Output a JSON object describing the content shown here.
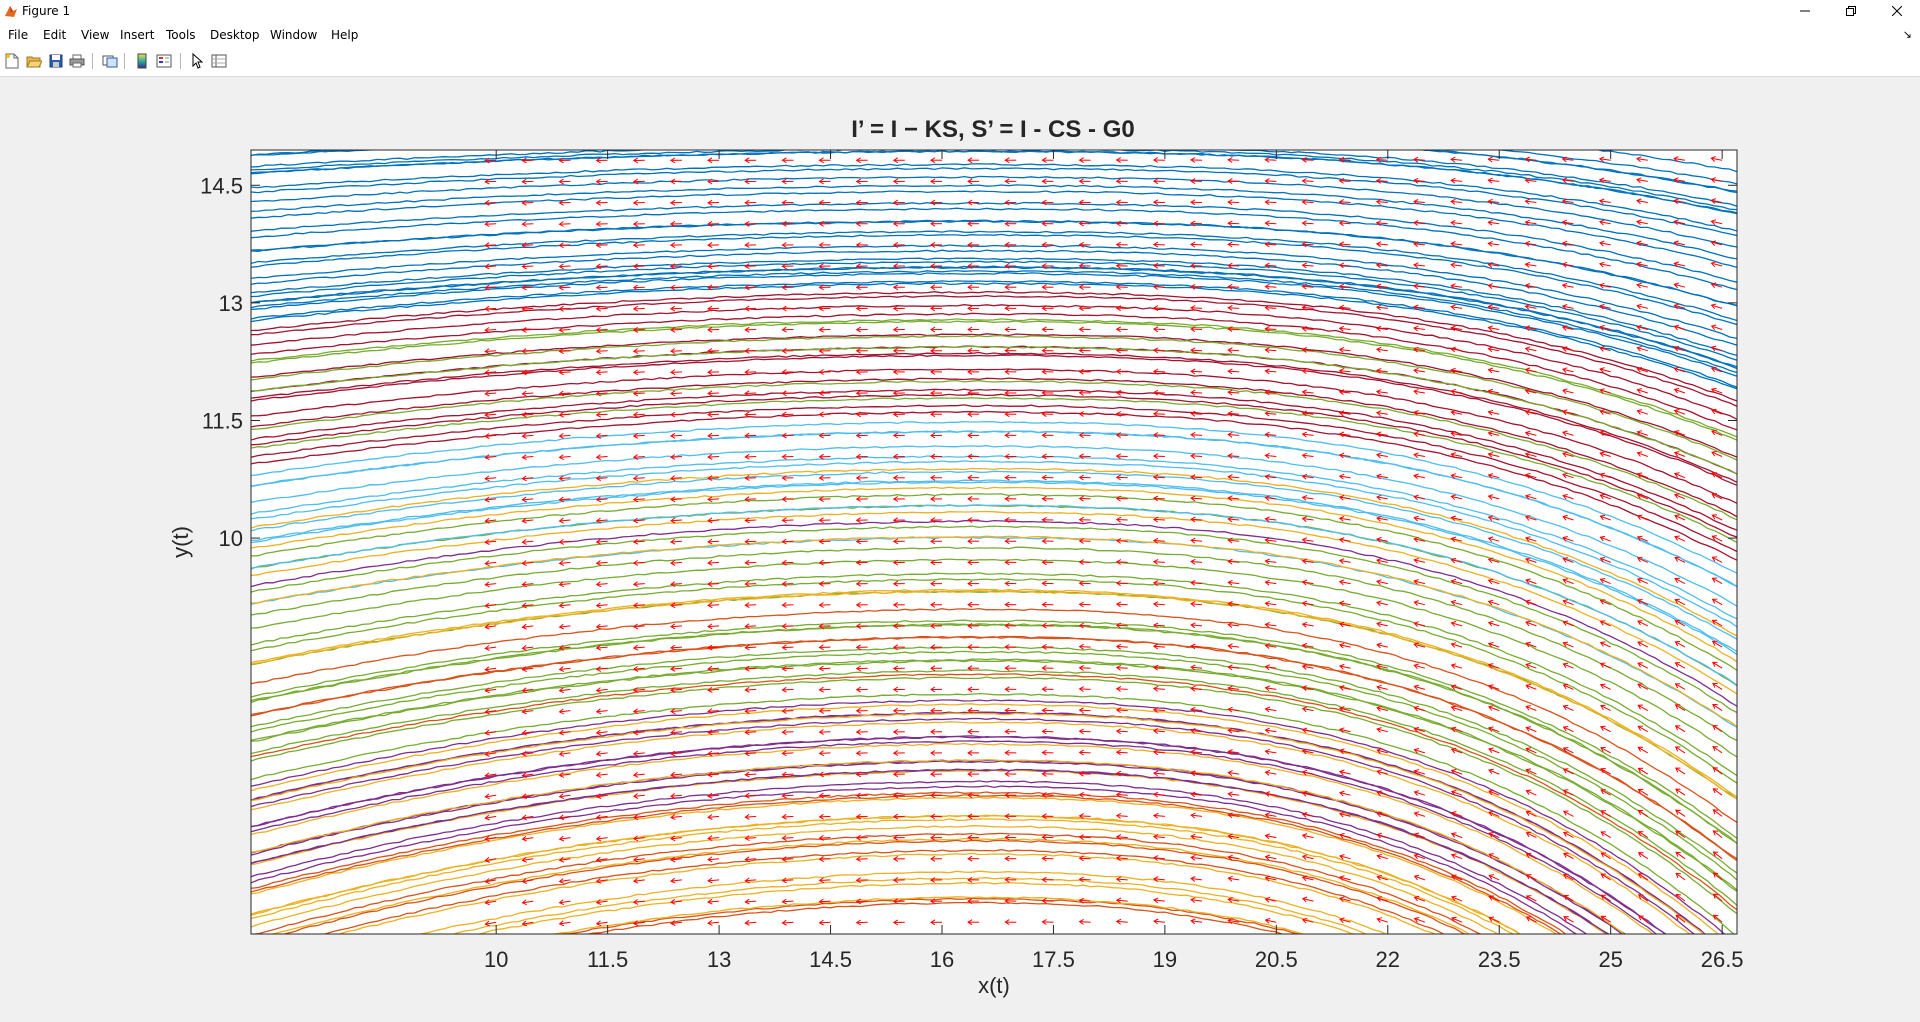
{
  "window": {
    "title": "Figure 1",
    "minimize_icon": "minimize-icon",
    "maximize_icon": "restore-icon",
    "close_icon": "close-icon"
  },
  "menu": [
    "File",
    "Edit",
    "View",
    "Insert",
    "Tools",
    "Desktop",
    "Window",
    "Help"
  ],
  "toolbar": {
    "icons": [
      "new-figure-icon",
      "open-file-icon",
      "save-icon",
      "print-icon",
      "link-plot-icon",
      "insert-colorbar-icon",
      "insert-legend-icon",
      "edit-plot-icon",
      "property-inspector-icon"
    ]
  },
  "chart_data": {
    "type": "quiver+line",
    "title": "I’ = I − KS, S’ = I - CS - G0",
    "xlabel": "x(t)",
    "ylabel": "y(t)",
    "xlim": [
      6.7,
      26.7
    ],
    "ylim": [
      4.95,
      14.95
    ],
    "xticks": [
      10,
      11.5,
      13,
      14.5,
      16,
      17.5,
      19,
      20.5,
      22,
      23.5,
      25,
      26.5
    ],
    "xtick_labels": [
      "10",
      "11.5",
      "13",
      "14.5",
      "16",
      "17.5",
      "19",
      "20.5",
      "22",
      "23.5",
      "25",
      "26.5"
    ],
    "yticks": [
      10,
      11.5,
      13,
      14.5
    ],
    "ytick_labels": [
      "10",
      "11.5",
      "13",
      "14.5"
    ],
    "grid": false,
    "quiver_color": "#ff0000",
    "series_colors": [
      "#0072bd",
      "#d95319",
      "#edb120",
      "#7e2f8e",
      "#77ac30",
      "#4dbeee",
      "#a2142f"
    ],
    "trajectory_model": {
      "description_free": true,
      "peak_x": 16.5,
      "curvature": 0.0022
    }
  }
}
